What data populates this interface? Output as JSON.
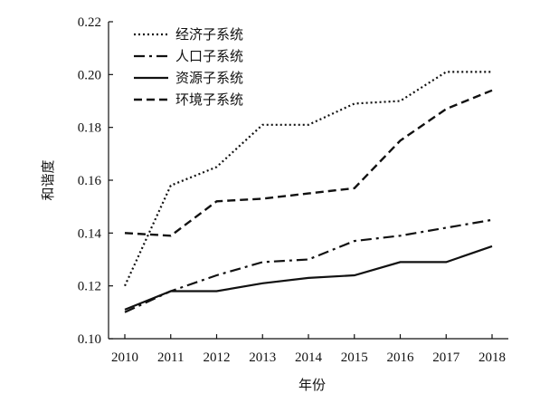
{
  "chart_data": {
    "type": "line",
    "title": "",
    "xlabel": "年份",
    "ylabel": "和谐度",
    "xlim": [
      2010,
      2018
    ],
    "ylim": [
      0.1,
      0.22
    ],
    "x": [
      2010,
      2011,
      2012,
      2013,
      2014,
      2015,
      2016,
      2017,
      2018
    ],
    "x_tick_labels": [
      "2010",
      "2011",
      "2012",
      "2013",
      "2014",
      "2015",
      "2016",
      "2017",
      "2018"
    ],
    "y_ticks": [
      0.1,
      0.12,
      0.14,
      0.16,
      0.18,
      0.2,
      0.22
    ],
    "y_tick_labels": [
      "0.10",
      "0.12",
      "0.14",
      "0.16",
      "0.18",
      "0.20",
      "0.22"
    ],
    "grid": false,
    "legend_position": "top-left",
    "series": [
      {
        "name": "经济子系统",
        "style": "dotted",
        "values": [
          0.12,
          0.158,
          0.165,
          0.181,
          0.181,
          0.189,
          0.19,
          0.201,
          0.201
        ]
      },
      {
        "name": "人口子系统",
        "style": "dashdot",
        "values": [
          0.11,
          0.118,
          0.124,
          0.129,
          0.13,
          0.137,
          0.139,
          0.142,
          0.145
        ]
      },
      {
        "name": "资源子系统",
        "style": "solid",
        "values": [
          0.111,
          0.118,
          0.118,
          0.121,
          0.123,
          0.124,
          0.129,
          0.129,
          0.135
        ]
      },
      {
        "name": "环境子系统",
        "style": "dashed",
        "values": [
          0.14,
          0.139,
          0.152,
          0.153,
          0.155,
          0.157,
          0.175,
          0.187,
          0.194
        ]
      }
    ]
  }
}
